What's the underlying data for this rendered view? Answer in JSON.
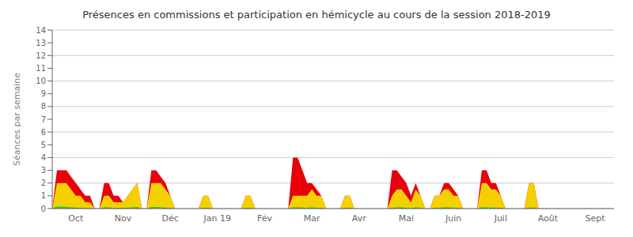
{
  "chart_data": {
    "type": "area",
    "title": "Présences en commissions et participation en hémicycle au cours de la session 2018-2019",
    "ylabel": "Séances par semaine",
    "categories": [
      null,
      null,
      null,
      null,
      null,
      "Oct",
      null,
      null,
      null,
      null,
      null,
      null,
      null,
      null,
      null,
      "Nov",
      null,
      null,
      null,
      null,
      null,
      null,
      null,
      null,
      null,
      "Déc",
      null,
      null,
      null,
      null,
      null,
      null,
      null,
      null,
      null,
      "Jan 19",
      null,
      null,
      null,
      null,
      null,
      null,
      null,
      null,
      null,
      "Fév",
      null,
      null,
      null,
      null,
      null,
      null,
      null,
      null,
      null,
      "Mar",
      null,
      null,
      null,
      null,
      null,
      null,
      null,
      null,
      null,
      "Avr",
      null,
      null,
      null,
      null,
      null,
      null,
      null,
      null,
      null,
      "Mai",
      null,
      null,
      null,
      null,
      null,
      null,
      null,
      null,
      null,
      "Juin",
      null,
      null,
      null,
      null,
      null,
      null,
      null,
      null,
      null,
      "Juil",
      null,
      null,
      null,
      null,
      null,
      null,
      null,
      null,
      null,
      "Août",
      null,
      null,
      null,
      null,
      null,
      null,
      null,
      null,
      null,
      "Sept",
      null,
      null,
      null,
      null
    ],
    "series": [
      {
        "color": "#e8000a",
        "values": [
          0,
          3,
          3,
          3,
          2.5,
          2,
          1.5,
          1,
          1,
          0,
          0,
          2,
          2,
          1,
          1,
          0.5,
          1,
          1.5,
          2,
          0,
          0,
          3,
          3,
          2.5,
          2,
          1,
          0,
          0,
          0,
          0,
          0,
          0,
          1,
          1,
          0,
          0,
          0,
          0,
          0,
          0,
          0,
          1,
          1,
          0,
          0,
          0,
          0,
          0,
          0,
          0,
          0,
          4,
          4,
          3,
          2,
          2,
          1.5,
          1,
          0,
          0,
          0,
          0,
          1,
          1,
          0,
          0,
          0,
          0,
          0,
          0,
          0,
          0,
          3,
          3,
          2.5,
          2,
          1,
          2,
          1,
          0,
          0,
          1,
          1,
          2,
          2,
          1.5,
          1,
          0,
          0,
          0,
          0,
          3,
          3,
          2,
          2,
          1,
          0,
          0,
          0,
          0,
          0,
          2,
          2,
          0,
          0,
          0,
          0,
          0,
          0,
          0,
          0,
          0,
          0,
          0,
          0,
          0,
          0,
          0,
          0,
          0
        ]
      },
      {
        "color": "#f5d000",
        "values": [
          0,
          2,
          2,
          2,
          1.5,
          1,
          1,
          0.5,
          0.5,
          0,
          0,
          1,
          1,
          0.5,
          0.5,
          0.5,
          1,
          1.5,
          2,
          0,
          0,
          2,
          2,
          2,
          1.5,
          1,
          0,
          0,
          0,
          0,
          0,
          0,
          1,
          1,
          0,
          0,
          0,
          0,
          0,
          0,
          0,
          1,
          1,
          0,
          0,
          0,
          0,
          0,
          0,
          0,
          0,
          1,
          1,
          1,
          1,
          1.5,
          1,
          1,
          0,
          0,
          0,
          0,
          1,
          1,
          0,
          0,
          0,
          0,
          0,
          0,
          0,
          0,
          1,
          1.5,
          1.5,
          1,
          0.5,
          1.5,
          1,
          0,
          0,
          1,
          1,
          1.5,
          1.5,
          1,
          1,
          0,
          0,
          0,
          0,
          2,
          2,
          1.5,
          1.5,
          1,
          0,
          0,
          0,
          0,
          0,
          2,
          2,
          0,
          0,
          0,
          0,
          0,
          0,
          0,
          0,
          0,
          0,
          0,
          0,
          0,
          0,
          0,
          0,
          0
        ]
      },
      {
        "color": "#22cc22",
        "values": [
          0,
          0.15,
          0.15,
          0.12,
          0.1,
          0.08,
          0.06,
          0.05,
          0.05,
          0,
          0,
          0.1,
          0.1,
          0.05,
          0.05,
          0.05,
          0.08,
          0.1,
          0.12,
          0,
          0,
          0.12,
          0.12,
          0.1,
          0.08,
          0.06,
          0,
          0,
          0,
          0,
          0,
          0,
          0.06,
          0.06,
          0,
          0,
          0,
          0,
          0,
          0,
          0,
          0.06,
          0.06,
          0,
          0,
          0,
          0,
          0,
          0,
          0,
          0,
          0.1,
          0.1,
          0.08,
          0.06,
          0.1,
          0.06,
          0.06,
          0,
          0,
          0,
          0,
          0.06,
          0.06,
          0,
          0,
          0,
          0,
          0,
          0,
          0,
          0,
          0.06,
          0.1,
          0.1,
          0.06,
          0.04,
          0.1,
          0.06,
          0,
          0,
          0.06,
          0.06,
          0.1,
          0.1,
          0.08,
          0.06,
          0,
          0,
          0,
          0,
          0.1,
          0.1,
          0.08,
          0.08,
          0.06,
          0,
          0,
          0,
          0,
          0,
          0.08,
          0.08,
          0,
          0,
          0,
          0,
          0,
          0,
          0,
          0,
          0,
          0,
          0,
          0,
          0,
          0,
          0,
          0,
          0
        ]
      }
    ],
    "ylim": [
      0,
      14
    ],
    "yticks": [
      0,
      1,
      2,
      3,
      4,
      5,
      6,
      7,
      8,
      9,
      10,
      11,
      12,
      13,
      14
    ],
    "grid": true,
    "stacked": false
  }
}
